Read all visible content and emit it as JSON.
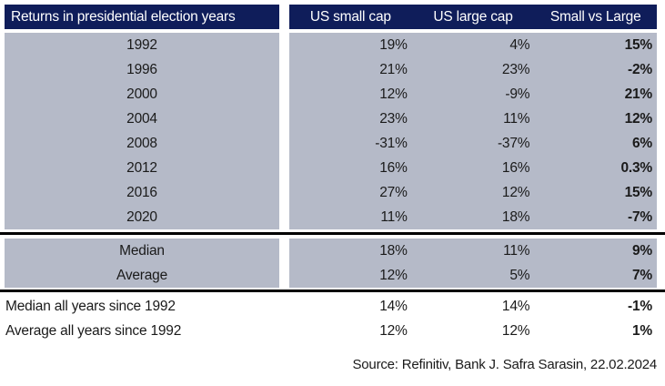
{
  "table": {
    "title": "Returns in presidential election years",
    "columns": [
      "US small cap",
      "US large cap",
      "Small vs Large"
    ],
    "rows": [
      {
        "label": "1992",
        "small": "19%",
        "large": "4%",
        "diff": "15%"
      },
      {
        "label": "1996",
        "small": "21%",
        "large": "23%",
        "diff": "-2%"
      },
      {
        "label": "2000",
        "small": "12%",
        "large": "-9%",
        "diff": "21%"
      },
      {
        "label": "2004",
        "small": "23%",
        "large": "11%",
        "diff": "12%"
      },
      {
        "label": "2008",
        "small": "-31%",
        "large": "-37%",
        "diff": "6%"
      },
      {
        "label": "2012",
        "small": "16%",
        "large": "16%",
        "diff": "0.3%"
      },
      {
        "label": "2016",
        "small": "27%",
        "large": "12%",
        "diff": "15%"
      },
      {
        "label": "2020",
        "small": "11%",
        "large": "18%",
        "diff": "-7%"
      }
    ],
    "stats": [
      {
        "label": "Median",
        "small": "18%",
        "large": "11%",
        "diff": "9%"
      },
      {
        "label": "Average",
        "small": "12%",
        "large": "5%",
        "diff": "7%"
      }
    ],
    "all_years": [
      {
        "label": "Median all years since 1992",
        "small": "14%",
        "large": "14%",
        "diff": "-1%"
      },
      {
        "label": "Average all years since 1992",
        "small": "12%",
        "large": "12%",
        "diff": "1%"
      }
    ],
    "source": "Source: Refinitiv, Bank J. Safra Sarasin, 22.02.2024"
  },
  "colors": {
    "header_navy": "#0f1d5a",
    "row_gray": "#b5bac8",
    "divider_black": "#000000",
    "text": "#1a1a1a"
  },
  "chart_data": {
    "type": "table",
    "title": "Returns in presidential election years",
    "columns": [
      "Returns in presidential election years",
      "US small cap",
      "US large cap",
      "Small vs Large"
    ],
    "units": "%",
    "rows": [
      [
        "1992",
        19,
        4,
        15
      ],
      [
        "1996",
        21,
        23,
        -2
      ],
      [
        "2000",
        12,
        -9,
        21
      ],
      [
        "2004",
        23,
        11,
        12
      ],
      [
        "2008",
        -31,
        -37,
        6
      ],
      [
        "2012",
        16,
        16,
        0.3
      ],
      [
        "2016",
        27,
        12,
        15
      ],
      [
        "2020",
        11,
        18,
        -7
      ],
      [
        "Median",
        18,
        11,
        9
      ],
      [
        "Average",
        12,
        5,
        7
      ],
      [
        "Median all years since 1992",
        14,
        14,
        -1
      ],
      [
        "Average all years since 1992",
        12,
        12,
        1
      ]
    ],
    "source": "Source: Refinitiv, Bank J. Safra Sarasin, 22.02.2024"
  }
}
